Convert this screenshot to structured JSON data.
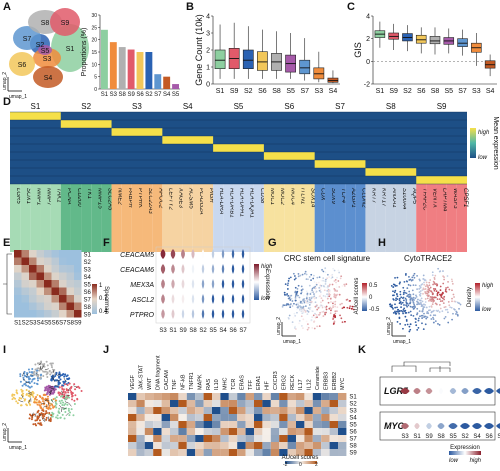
{
  "panel_labels": {
    "A": "A",
    "B": "B",
    "C": "C",
    "D": "D",
    "E": "E",
    "F": "F",
    "G": "G",
    "H": "H",
    "I": "I",
    "J": "J",
    "K": "K"
  },
  "umap": {
    "axis1": "umap_1",
    "axis2": "umap_2"
  },
  "palette": {
    "S1": "#8dcfa0",
    "S2": "#2a62b3",
    "S3": "#f08c3c",
    "S4": "#c35a24",
    "S5": "#a65aa9",
    "S6": "#f2c75a",
    "S7": "#5e96d0",
    "S8": "#b0b0b0",
    "S9": "#e15a6a"
  },
  "panel_a": {
    "clusters": [
      "S1",
      "S2",
      "S3",
      "S4",
      "S5",
      "S6",
      "S7",
      "S8",
      "S9"
    ],
    "chart_data": {
      "type": "bar",
      "categories": [
        "S1",
        "S3",
        "S8",
        "S9",
        "S6",
        "S2",
        "S7",
        "S4",
        "S5"
      ],
      "values": [
        24,
        19,
        17,
        16,
        15,
        15,
        6,
        5,
        2
      ],
      "ylabel": "Proportions (%)",
      "ylim": [
        0,
        30
      ],
      "yticks": [
        "0",
        "5",
        "10",
        "15",
        "20",
        "25",
        "30"
      ]
    }
  },
  "panel_b": {
    "chart_data": {
      "type": "box",
      "categories": [
        "S1",
        "S9",
        "S2",
        "S6",
        "S8",
        "S5",
        "S7",
        "S3",
        "S4"
      ],
      "stats": [
        [
          0.3,
          0.9,
          1.4,
          2.0,
          3.5
        ],
        [
          0.3,
          0.9,
          1.5,
          2.1,
          3.6
        ],
        [
          0.3,
          0.9,
          1.4,
          2.0,
          3.4
        ],
        [
          0.3,
          0.8,
          1.3,
          1.9,
          3.2
        ],
        [
          0.3,
          0.8,
          1.3,
          1.8,
          3.1
        ],
        [
          0.3,
          0.7,
          1.2,
          1.7,
          3.0
        ],
        [
          0.2,
          0.6,
          0.95,
          1.4,
          2.7
        ],
        [
          0.1,
          0.3,
          0.6,
          0.95,
          1.9
        ],
        [
          0.05,
          0.1,
          0.2,
          0.35,
          0.8
        ]
      ],
      "ylabel": "Gene Count (10k)",
      "ylim": [
        0,
        4
      ],
      "yticks": [
        "0",
        "1",
        "2",
        "3",
        "4"
      ]
    }
  },
  "panel_c": {
    "chart_data": {
      "type": "box",
      "categories": [
        "S1",
        "S9",
        "S2",
        "S6",
        "S8",
        "S5",
        "S7",
        "S3",
        "S4"
      ],
      "stats": [
        [
          1.2,
          2.1,
          2.4,
          2.7,
          3.5
        ],
        [
          1.0,
          1.95,
          2.2,
          2.5,
          3.3
        ],
        [
          0.9,
          1.8,
          2.1,
          2.45,
          3.2
        ],
        [
          0.7,
          1.6,
          1.9,
          2.3,
          3.0
        ],
        [
          0.6,
          1.55,
          1.8,
          2.2,
          3.0
        ],
        [
          0.7,
          1.5,
          1.8,
          2.1,
          2.9
        ],
        [
          0.5,
          1.3,
          1.6,
          2.0,
          2.8
        ],
        [
          -0.4,
          0.8,
          1.2,
          1.6,
          2.5
        ],
        [
          -1.3,
          -0.6,
          -0.3,
          0.05,
          0.6
        ]
      ],
      "ylabel": "GIS",
      "ylim": [
        -2,
        4
      ],
      "yticks": [
        "-2",
        "0",
        "2",
        "4"
      ]
    }
  },
  "panel_d": {
    "clusters": [
      "S1",
      "S2",
      "S3",
      "S4",
      "S5",
      "S6",
      "S7",
      "S8",
      "S9"
    ],
    "genes": [
      "LGR5",
      "SOX1",
      "MMP1",
      "MMP7",
      "TAK1",
      "PCNA",
      "CD200",
      "TK1",
      "MMP15",
      "SLC2A5",
      "NME2",
      "PABPR",
      "PTPRK",
      "SLC22A3",
      "APOC2",
      "LEFTY2",
      "XAGE3",
      "ACSM5",
      "PLA2G2A",
      "PIGR",
      "HLA-DRA",
      "HLA-DRB1",
      "HLA-DPA1",
      "HLA-DQA1",
      "CD38",
      "MUC1",
      "MUC2",
      "MUC4",
      "ITLN1",
      "SOX14",
      "CDX",
      "SOX9",
      "TCF4",
      "AZGP1",
      "CLDN2",
      "KRT7",
      "KRT17",
      "ANXA1",
      "S100A4",
      "AQP5",
      "TFAP2C",
      "VENTX",
      "LAPTM4",
      "WASF3",
      "CPSF1"
    ],
    "legend": {
      "title": "Mean expression",
      "high": "high",
      "low": "low"
    }
  },
  "panel_e": {
    "labels": [
      "S1",
      "S2",
      "S3",
      "S4",
      "S5",
      "S6",
      "S7",
      "S8",
      "S9"
    ],
    "legend": {
      "title": "Spearman",
      "ticks": [
        "1",
        "0.7",
        "0.4"
      ]
    }
  },
  "panel_f": {
    "rows": [
      "CEACAM5",
      "CEACAM6",
      "MEX3A",
      "ASCL2",
      "PTPRO"
    ],
    "cols": [
      "S3",
      "S1",
      "S9",
      "S8",
      "S2",
      "S5",
      "S4",
      "S6",
      "S7"
    ],
    "legend": {
      "title": "Expression",
      "high": "high",
      "low": "low"
    }
  },
  "panel_g": {
    "title": "CRC stem cell signature",
    "legend": {
      "title": "AUcell scores",
      "ticks": [
        "0.5",
        "0",
        "-0.5"
      ]
    }
  },
  "panel_h": {
    "title": "CytoTRACE2",
    "legend": {
      "title": "Density",
      "high": "high",
      "low": "low"
    }
  },
  "panel_j": {
    "cols": [
      "VEGF",
      "JAK-STAT",
      "WNT",
      "DNA fragment",
      "CACAM",
      "TNF",
      "NF-kB",
      "TNFR1",
      "MAPK",
      "RAS",
      "IL10",
      "MHC",
      "TCR",
      "ERAS",
      "TFF",
      "ERA1",
      "HIF",
      "CXCR3",
      "ERG2",
      "RECK",
      "IL17",
      "IL12",
      "Ceramide",
      "ERBB3",
      "ERBB2",
      "MYC"
    ],
    "rows": [
      "S1",
      "S2",
      "S3",
      "S4",
      "S5",
      "S6",
      "S7",
      "S8",
      "S9"
    ],
    "legend": {
      "title": "AUcell scores",
      "ticks": [
        "-2",
        "0",
        "2"
      ]
    }
  },
  "panel_k": {
    "genes": [
      "LGR5",
      "MYC"
    ],
    "cols": [
      "S3",
      "S1",
      "S9",
      "S8",
      "S5",
      "S2",
      "S4",
      "S6",
      "S7"
    ],
    "legend": {
      "title": "Expression",
      "low": "low",
      "high": "high"
    }
  }
}
